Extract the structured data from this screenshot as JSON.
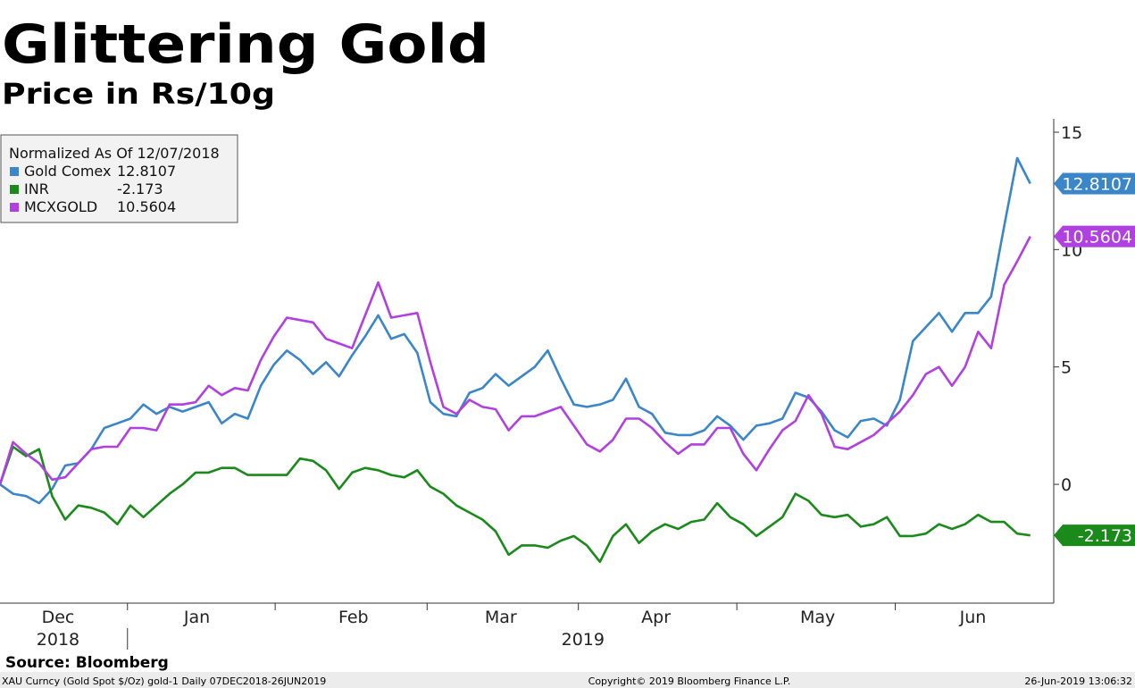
{
  "chart_data": {
    "type": "line",
    "title": "Glittering Gold",
    "subtitle": "Price in Rs/10g",
    "legend_title": "Normalized As Of 12/07/2018",
    "source": "Source: Bloomberg",
    "footer": {
      "left": "XAU Curncy (Gold Spot  $/Oz) gold-1  Daily 07DEC2018-26JUN2019",
      "center": "Copyright© 2019 Bloomberg Finance L.P.",
      "right": "26-Jun-2019 13:06:32"
    },
    "xlim": [
      0,
      80.8
    ],
    "xticks": [
      {
        "value": 4.45,
        "label": "Dec"
      },
      {
        "value": 15.1,
        "label": "Jan"
      },
      {
        "value": 27.1,
        "label": "Feb"
      },
      {
        "value": 38.4,
        "label": "Mar"
      },
      {
        "value": 50.3,
        "label": "Apr"
      },
      {
        "value": 62.7,
        "label": "May"
      },
      {
        "value": 74.6,
        "label": "Jun"
      }
    ],
    "year_labels": [
      {
        "value": 4.45,
        "label": "2018"
      },
      {
        "value": 44.7,
        "label": "2019"
      }
    ],
    "ylim": [
      -5.06,
      15.57
    ],
    "yticks": [
      0,
      5,
      10,
      15
    ],
    "legend": "upper left",
    "series": [
      {
        "name": "Gold Comex",
        "color": "#3a86c8",
        "values": [
          0,
          -0.4,
          -0.5,
          -0.8,
          -0.2,
          0.8,
          0.9,
          1.5,
          2.4,
          2.6,
          2.8,
          3.4,
          3.0,
          3.3,
          3.1,
          3.3,
          3.5,
          2.6,
          3.0,
          2.8,
          4.2,
          5.1,
          5.7,
          5.3,
          4.7,
          5.2,
          4.6,
          5.5,
          6.3,
          7.2,
          6.2,
          6.4,
          5.6,
          3.5,
          3.0,
          2.9,
          3.9,
          4.1,
          4.7,
          4.2,
          4.6,
          5.0,
          5.7,
          4.5,
          3.4,
          3.3,
          3.4,
          3.6,
          4.5,
          3.3,
          3.0,
          2.2,
          2.1,
          2.1,
          2.3,
          2.9,
          2.5,
          1.9,
          2.5,
          2.6,
          2.8,
          3.9,
          3.7,
          3.1,
          2.3,
          2.0,
          2.7,
          2.8,
          2.5,
          3.6,
          6.1,
          6.7,
          7.3,
          6.5,
          7.3,
          7.3,
          8.0,
          11.0,
          13.9,
          12.8107
        ]
      },
      {
        "name": "INR",
        "color": "#1a8a1a",
        "values": [
          0,
          1.6,
          1.2,
          1.5,
          -0.5,
          -1.5,
          -0.9,
          -1.0,
          -1.2,
          -1.7,
          -0.9,
          -1.4,
          -0.9,
          -0.4,
          0.0,
          0.5,
          0.5,
          0.7,
          0.7,
          0.4,
          0.4,
          0.4,
          0.4,
          1.1,
          1.0,
          0.6,
          -0.2,
          0.5,
          0.7,
          0.6,
          0.4,
          0.3,
          0.6,
          -0.1,
          -0.4,
          -0.9,
          -1.2,
          -1.5,
          -2.0,
          -3.0,
          -2.6,
          -2.6,
          -2.7,
          -2.4,
          -2.2,
          -2.6,
          -3.3,
          -2.2,
          -1.7,
          -2.5,
          -2.0,
          -1.7,
          -1.9,
          -1.6,
          -1.5,
          -0.8,
          -1.4,
          -1.7,
          -2.2,
          -1.8,
          -1.4,
          -0.4,
          -0.7,
          -1.3,
          -1.4,
          -1.3,
          -1.8,
          -1.7,
          -1.4,
          -2.2,
          -2.2,
          -2.1,
          -1.7,
          -1.9,
          -1.7,
          -1.3,
          -1.6,
          -1.6,
          -2.1,
          -2.173
        ]
      },
      {
        "name": "MCXGOLD",
        "color": "#b040e0",
        "values": [
          0,
          1.8,
          1.3,
          0.9,
          0.2,
          0.3,
          0.9,
          1.5,
          1.6,
          1.6,
          2.4,
          2.4,
          2.3,
          3.4,
          3.4,
          3.5,
          4.2,
          3.8,
          4.1,
          4.0,
          5.3,
          6.3,
          7.1,
          7.0,
          6.9,
          6.2,
          6.0,
          5.8,
          7.2,
          8.6,
          7.1,
          7.2,
          7.3,
          5.2,
          3.3,
          3.0,
          3.6,
          3.3,
          3.2,
          2.3,
          2.9,
          2.9,
          3.1,
          3.3,
          2.5,
          1.7,
          1.4,
          1.9,
          2.8,
          2.8,
          2.4,
          1.8,
          1.3,
          1.7,
          1.7,
          2.4,
          2.4,
          1.3,
          0.6,
          1.5,
          2.3,
          2.7,
          3.8,
          3.0,
          1.6,
          1.5,
          1.8,
          2.1,
          2.6,
          3.1,
          3.8,
          4.7,
          5.0,
          4.2,
          5.0,
          6.5,
          5.8,
          8.5,
          9.5,
          10.5604
        ]
      }
    ]
  }
}
